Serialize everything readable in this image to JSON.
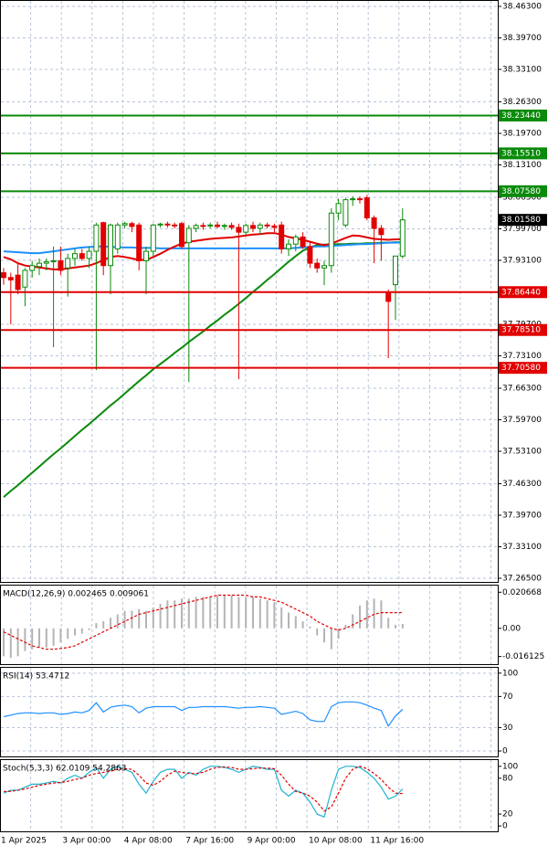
{
  "chart_data": [
    {
      "type": "candlestick",
      "open": [
        37.905,
        37.895,
        37.9,
        37.875,
        37.91,
        37.918,
        37.925,
        37.928,
        37.93,
        37.915,
        37.935,
        37.945,
        37.935,
        37.95,
        38.01,
        37.92,
        37.955,
        38.005,
        38.008,
        38.005,
        37.93,
        37.95,
        38.005,
        38.007,
        38.005,
        38.008,
        37.968,
        37.998,
        38.004,
        38.003,
        38.005,
        38.002,
        38.004,
        38.0,
        37.99,
        38.004,
        37.998,
        38.005,
        38.003,
        38.005,
        37.955,
        37.965,
        37.98,
        37.96,
        37.925,
        37.915,
        37.92,
        38.03,
        38.005,
        38.058,
        38.06,
        38.062,
        38.02,
        37.998,
        37.864,
        37.88,
        37.94
      ],
      "high": [
        37.915,
        37.905,
        37.925,
        37.915,
        37.93,
        37.935,
        37.935,
        37.96,
        37.96,
        37.945,
        37.955,
        37.955,
        37.96,
        38.01,
        38.012,
        38.008,
        38.01,
        38.012,
        38.012,
        38.01,
        37.96,
        38.008,
        38.01,
        38.012,
        38.01,
        38.012,
        38.005,
        38.008,
        38.01,
        38.01,
        38.012,
        38.008,
        38.01,
        38.008,
        38.008,
        38.012,
        38.01,
        38.01,
        38.008,
        38.012,
        37.975,
        37.985,
        37.99,
        37.97,
        37.935,
        37.93,
        38.04,
        38.06,
        38.062,
        38.065,
        38.065,
        38.068,
        38.025,
        38.005,
        37.87,
        37.935,
        38.04
      ],
      "low": [
        37.88,
        37.797,
        37.86,
        37.835,
        37.895,
        37.9,
        37.91,
        37.749,
        37.9,
        37.855,
        37.92,
        37.93,
        37.915,
        37.701,
        37.9,
        37.86,
        37.945,
        37.998,
        37.99,
        37.91,
        37.86,
        37.94,
        38.0,
        38.0,
        37.998,
        37.955,
        37.676,
        37.99,
        37.995,
        37.998,
        37.998,
        37.995,
        37.995,
        37.682,
        37.985,
        37.99,
        37.985,
        37.998,
        37.99,
        37.945,
        37.94,
        37.95,
        37.955,
        37.915,
        37.905,
        37.879,
        37.905,
        38.015,
        38.0,
        38.045,
        38.05,
        38.015,
        37.925,
        37.93,
        37.726,
        37.806,
        37.935
      ],
      "close": [
        37.895,
        37.89,
        37.87,
        37.91,
        37.92,
        37.925,
        37.928,
        37.93,
        37.91,
        37.935,
        37.945,
        37.935,
        37.95,
        38.005,
        37.92,
        38.005,
        38.005,
        38.008,
        38.002,
        37.93,
        37.95,
        38.005,
        38.007,
        38.005,
        38.004,
        37.96,
        37.998,
        38.004,
        38.003,
        38.005,
        38.002,
        38.004,
        38.0,
        37.99,
        38.004,
        37.998,
        38.005,
        38.003,
        38.0,
        37.955,
        37.965,
        37.98,
        37.96,
        37.925,
        37.915,
        37.92,
        38.03,
        38.05,
        38.058,
        38.06,
        38.058,
        38.02,
        37.998,
        37.985,
        37.845,
        37.94,
        38.0158
      ],
      "up_color": "#0a8a0a",
      "down_color": "#e00000",
      "lines": [
        {
          "color": "#0a8a0a",
          "values": [
            37.435,
            37.448,
            37.46,
            37.473,
            37.486,
            37.499,
            37.512,
            37.525,
            37.537,
            37.55,
            37.563,
            37.576,
            37.588,
            37.601,
            37.614,
            37.627,
            37.639,
            37.652,
            37.665,
            37.678,
            37.69,
            37.703,
            37.714,
            37.725,
            37.737,
            37.748,
            37.76,
            37.771,
            37.782,
            37.794,
            37.805,
            37.817,
            37.828,
            37.84,
            37.852,
            37.865,
            37.877,
            37.89,
            37.902,
            37.915,
            37.928,
            37.94,
            37.951,
            37.958,
            37.963,
            37.964,
            37.964,
            37.965,
            37.965,
            37.966,
            37.966,
            37.967,
            37.967,
            37.968,
            37.968,
            37.969,
            37.969
          ]
        },
        {
          "color": "#1e90ff",
          "values": [
            37.95,
            37.949,
            37.948,
            37.947,
            37.946,
            37.946,
            37.948,
            37.95,
            37.952,
            37.954,
            37.956,
            37.958,
            37.959,
            37.96,
            37.96,
            37.959,
            37.959,
            37.958,
            37.958,
            37.957,
            37.957,
            37.957,
            37.956,
            37.956,
            37.956,
            37.956,
            37.956,
            37.956,
            37.956,
            37.956,
            37.956,
            37.956,
            37.956,
            37.956,
            37.956,
            37.956,
            37.956,
            37.956,
            37.956,
            37.956,
            37.956,
            37.957,
            37.958,
            37.959,
            37.96,
            37.96,
            37.961,
            37.962,
            37.963,
            37.964,
            37.965,
            37.965,
            37.966,
            37.967,
            37.968,
            37.968,
            37.969
          ]
        },
        {
          "color": "#e00000",
          "values": [
            37.938,
            37.933,
            37.925,
            37.92,
            37.918,
            37.916,
            37.914,
            37.912,
            37.912,
            37.914,
            37.916,
            37.918,
            37.92,
            37.925,
            37.932,
            37.938,
            37.94,
            37.938,
            37.935,
            37.932,
            37.932,
            37.938,
            37.945,
            37.953,
            37.96,
            37.966,
            37.97,
            37.972,
            37.974,
            37.976,
            37.977,
            37.978,
            37.979,
            37.981,
            37.983,
            37.985,
            37.986,
            37.988,
            37.988,
            37.985,
            37.98,
            37.977,
            37.974,
            37.97,
            37.966,
            37.963,
            37.966,
            37.972,
            37.978,
            37.983,
            37.982,
            37.979,
            37.976,
            37.975,
            37.974,
            37.975,
            37.975
          ]
        }
      ],
      "levels": [
        {
          "value": 38.2344,
          "label": "38.23440",
          "color": "#0a8a0a"
        },
        {
          "value": 38.1551,
          "label": "38.15510",
          "color": "#0a8a0a"
        },
        {
          "value": 38.0758,
          "label": "38.07580",
          "color": "#0a8a0a"
        },
        {
          "value": 37.8644,
          "label": "37.86440",
          "color": "#e00000"
        },
        {
          "value": 37.7851,
          "label": "37.78510",
          "color": "#e00000"
        },
        {
          "value": 37.7058,
          "label": "37.70580",
          "color": "#e00000"
        }
      ],
      "last_price": {
        "value": 38.0158,
        "label": "38.01580"
      },
      "ylim": [
        37.2573,
        38.4764
      ],
      "yticks": [
        {
          "value": 38.463,
          "label": "38.46300"
        },
        {
          "value": 38.397,
          "label": "38.39700"
        },
        {
          "value": 38.331,
          "label": "38.33100"
        },
        {
          "value": 38.263,
          "label": "38.26300"
        },
        {
          "value": 38.197,
          "label": "38.19700"
        },
        {
          "value": 38.131,
          "label": "38.13100"
        },
        {
          "value": 38.063,
          "label": "38.06300"
        },
        {
          "value": 37.997,
          "label": "37.99700"
        },
        {
          "value": 37.931,
          "label": "37.93100"
        },
        {
          "value": 37.797,
          "label": "37.79700"
        },
        {
          "value": 37.731,
          "label": "37.73100"
        },
        {
          "value": 37.663,
          "label": "37.66300"
        },
        {
          "value": 37.597,
          "label": "37.59700"
        },
        {
          "value": 37.531,
          "label": "37.53100"
        },
        {
          "value": 37.463,
          "label": "37.46300"
        },
        {
          "value": 37.397,
          "label": "37.39700"
        },
        {
          "value": 37.331,
          "label": "37.33100"
        },
        {
          "value": 37.265,
          "label": "37.26500"
        }
      ],
      "grid": true,
      "x_labels": [
        "1 Apr 2025",
        "3 Apr 00:00",
        "4 Apr 08:00",
        "7 Apr 16:00",
        "9 Apr 00:00",
        "10 Apr 08:00",
        "11 Apr 16:00"
      ]
    },
    {
      "type": "macd",
      "title": "MACD(12,26,9) 0.002465 0.009061",
      "histogram": [
        -0.016,
        -0.017,
        -0.016,
        -0.013,
        -0.012,
        -0.011,
        -0.011,
        -0.01,
        -0.008,
        -0.006,
        -0.004,
        -0.003,
        -0.001,
        0.003,
        0.004,
        0.006,
        0.008,
        0.01,
        0.01,
        0.011,
        0.01,
        0.012,
        0.014,
        0.016,
        0.016,
        0.017,
        0.017,
        0.018,
        0.018,
        0.018,
        0.019,
        0.019,
        0.019,
        0.018,
        0.018,
        0.018,
        0.017,
        0.016,
        0.015,
        0.012,
        0.009,
        0.007,
        0.004,
        0.001,
        -0.004,
        -0.008,
        -0.012,
        -0.006,
        0.002,
        0.008,
        0.013,
        0.016,
        0.017,
        0.016,
        0.006,
        0.002,
        0.002465
      ],
      "color": "#b4b4b4",
      "series": [
        {
          "color": "#e00000",
          "dash": true,
          "values": [
            -0.002,
            -0.004,
            -0.006,
            -0.008,
            -0.01,
            -0.011,
            -0.012,
            -0.012,
            -0.0115,
            -0.011,
            -0.01,
            -0.008,
            -0.006,
            -0.004,
            -0.002,
            0.0,
            0.002,
            0.004,
            0.006,
            0.008,
            0.009,
            0.01,
            0.011,
            0.012,
            0.013,
            0.014,
            0.015,
            0.016,
            0.017,
            0.018,
            0.019,
            0.019,
            0.019,
            0.019,
            0.019,
            0.018,
            0.018,
            0.017,
            0.016,
            0.015,
            0.013,
            0.011,
            0.009,
            0.007,
            0.004,
            0.002,
            0.0,
            -0.001,
            0.0,
            0.002,
            0.004,
            0.006,
            0.008,
            0.009,
            0.009,
            0.009,
            0.009061
          ]
        }
      ],
      "ylim": [
        -0.0205,
        0.025
      ],
      "yticks": [
        0.020668,
        {
          "value": 0,
          "label": "0.00"
        },
        -0.016125
      ],
      "grid": false
    },
    {
      "type": "line",
      "title": "RSI(14) 53.4712",
      "series": [
        {
          "color": "#1e90ff",
          "dash": false,
          "values": [
            44,
            46,
            48,
            49,
            49,
            48,
            49,
            49,
            47,
            48,
            50,
            49,
            52,
            62,
            50,
            56,
            58,
            59,
            57,
            49,
            55,
            57,
            57,
            57,
            57,
            52,
            56,
            56,
            57,
            57,
            57,
            57,
            56,
            55,
            56,
            56,
            57,
            56,
            55,
            47,
            49,
            51,
            48,
            40,
            38,
            38,
            57,
            62,
            63,
            63,
            62,
            59,
            55,
            52,
            32,
            45,
            53.4712
          ]
        }
      ],
      "ylim": [
        -7,
        108
      ],
      "yticks": [
        100,
        70,
        30,
        0
      ],
      "grid": true
    },
    {
      "type": "line",
      "title": "Stoch(5,3,3) 62.0109 54.2863",
      "series": [
        {
          "color": "#20b2d0",
          "dash": false,
          "values": [
            55,
            60,
            60,
            65,
            70,
            70,
            72,
            75,
            72,
            80,
            85,
            80,
            90,
            98,
            80,
            95,
            100,
            95,
            90,
            70,
            55,
            75,
            90,
            95,
            95,
            80,
            90,
            85,
            95,
            100,
            100,
            98,
            95,
            90,
            95,
            100,
            98,
            95,
            95,
            60,
            50,
            60,
            55,
            40,
            20,
            15,
            60,
            95,
            100,
            100,
            98,
            90,
            80,
            65,
            45,
            50,
            62.0109
          ]
        },
        {
          "color": "#e00000",
          "dash": true,
          "values": [
            58,
            58,
            60,
            62,
            65,
            68,
            70,
            72,
            73,
            75,
            78,
            80,
            85,
            88,
            90,
            92,
            95,
            96,
            95,
            85,
            72,
            68,
            75,
            85,
            92,
            90,
            88,
            88,
            90,
            95,
            98,
            99,
            98,
            95,
            95,
            96,
            97,
            97,
            96,
            85,
            70,
            58,
            55,
            50,
            40,
            25,
            32,
            55,
            80,
            95,
            100,
            96,
            88,
            78,
            65,
            55,
            54.2863
          ]
        }
      ],
      "ylim": [
        -9,
        112
      ],
      "yticks": [
        100,
        80,
        20,
        0
      ],
      "grid": false
    }
  ]
}
